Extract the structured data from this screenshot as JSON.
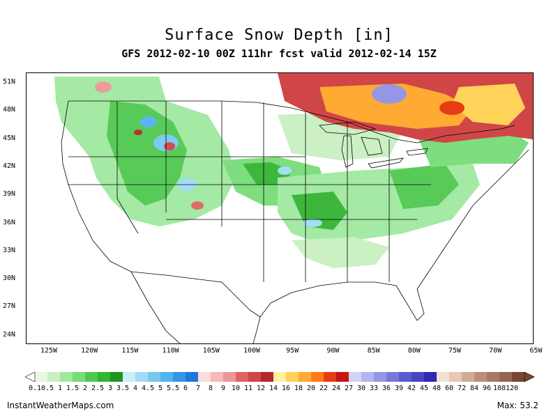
{
  "title": "Surface Snow Depth [in]",
  "subtitle": "GFS 2012-02-10 00Z 111hr fcst valid 2012-02-14 15Z",
  "lat_labels": [
    "51N",
    "48N",
    "45N",
    "42N",
    "39N",
    "36N",
    "33N",
    "30N",
    "27N",
    "24N"
  ],
  "lon_labels": [
    "125W",
    "120W",
    "115W",
    "110W",
    "105W",
    "100W",
    "95W",
    "90W",
    "85W",
    "80W",
    "75W",
    "70W",
    "65W"
  ],
  "legend": {
    "labels": [
      "0.1",
      "0.5",
      "1",
      "1.5",
      "2",
      "2.5",
      "3",
      "3.5",
      "4",
      "4.5",
      "5",
      "5.5",
      "6",
      "7",
      "8",
      "9",
      "10",
      "11",
      "12",
      "14",
      "16",
      "18",
      "20",
      "22",
      "24",
      "27",
      "30",
      "33",
      "36",
      "39",
      "42",
      "45",
      "48",
      "60",
      "72",
      "84",
      "96",
      "108",
      "120"
    ],
    "colors": [
      "#e8f7e0",
      "#c8f0c0",
      "#a0e8a0",
      "#78dc78",
      "#50c850",
      "#32b432",
      "#1e961e",
      "#c8f0f8",
      "#a0dcf8",
      "#78c8f0",
      "#50b4f0",
      "#3296e6",
      "#1e78dc",
      "#fadcdc",
      "#f5b9b9",
      "#ee9696",
      "#e06464",
      "#d04646",
      "#b42828",
      "#fff0a0",
      "#ffd25a",
      "#ffaa32",
      "#ff7a14",
      "#e63c14",
      "#c81414",
      "#d2d2f5",
      "#b4b4f0",
      "#9696e6",
      "#7878dc",
      "#5a5ad2",
      "#4646c3",
      "#3228b4",
      "#f0e1d2",
      "#e6c8b4",
      "#d2aa96",
      "#be8c78",
      "#aa7864",
      "#966450",
      "#784632"
    ]
  },
  "footer": {
    "site": "InstantWeatherMaps.com",
    "max_label": "Max:",
    "max_value": "53.2"
  }
}
